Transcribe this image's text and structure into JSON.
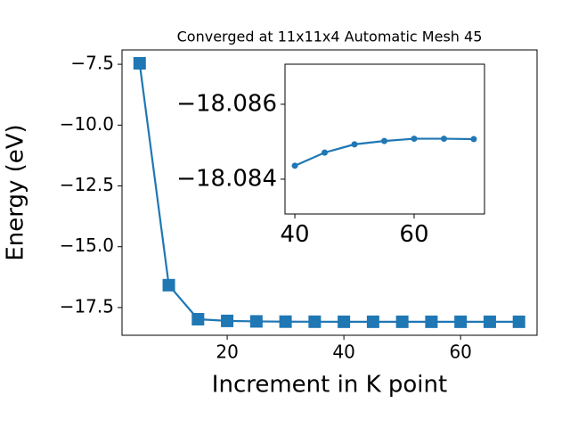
{
  "chart_data": [
    {
      "type": "line",
      "title": "Converged at 11x11x4 Automatic Mesh 45",
      "x_label": "Increment in K point",
      "y_label": "Energy (eV)",
      "x": [
        5,
        10,
        15,
        20,
        25,
        30,
        35,
        40,
        45,
        50,
        55,
        60,
        65,
        70
      ],
      "series": [
        {
          "color": "#1f77b4",
          "marker": "square",
          "values": [
            -7.46,
            -16.58,
            -17.98,
            -18.05,
            -18.07,
            -18.08,
            -18.083,
            -18.0844,
            -18.0847,
            -18.0849,
            -18.085,
            -18.0851,
            -18.0851,
            -18.0851
          ]
        }
      ],
      "xlim": [
        1.98,
        73.1
      ],
      "ylim": [
        -18.64,
        -6.91
      ],
      "xticks": [
        20,
        40,
        60
      ],
      "yticks": [
        {
          "value": -7.5,
          "label": "−7.5"
        },
        {
          "value": -10.0,
          "label": "−10.0"
        },
        {
          "value": -12.5,
          "label": "−12.5"
        },
        {
          "value": -15.0,
          "label": "−15.0"
        },
        {
          "value": -17.5,
          "label": "−17.5"
        }
      ]
    },
    {
      "type": "line",
      "x": [
        40,
        45,
        50,
        55,
        60,
        65,
        70
      ],
      "series": [
        {
          "color": "#1f77b4",
          "marker": "circle",
          "values": [
            -18.08436,
            -18.08471,
            -18.08493,
            -18.08502,
            -18.08508,
            -18.08508,
            -18.08507
          ]
        }
      ],
      "xlim": [
        38.35,
        71.8
      ],
      "ylim": [
        -18.08307,
        -18.08707
      ],
      "xticks": [
        40,
        60
      ],
      "yticks": [
        {
          "value": -18.086,
          "label": "−18.086"
        },
        {
          "value": -18.084,
          "label": "−18.084"
        }
      ]
    }
  ]
}
